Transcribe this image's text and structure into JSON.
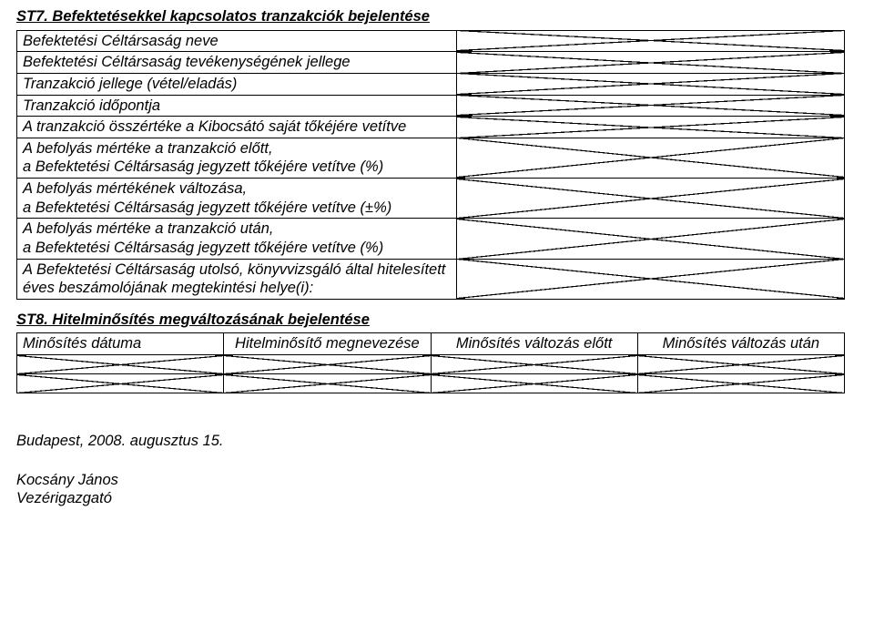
{
  "st7": {
    "title": "ST7. Befektetésekkel kapcsolatos tranzakciók bejelentése",
    "rows": [
      "Befektetési Céltársaság neve",
      "Befektetési Céltársaság tevékenységének jellege",
      "Tranzakció jellege (vétel/eladás)",
      "Tranzakció időpontja",
      "A tranzakció összértéke a Kibocsátó saját tőkéjére vetítve",
      "A befolyás mértéke a tranzakció előtt,\na Befektetési Céltársaság jegyzett tőkéjére vetítve (%)",
      "A befolyás mértékének változása,\na Befektetési Céltársaság jegyzett tőkéjére vetítve (±%)",
      "A befolyás mértéke a tranzakció után,\na Befektetési Céltársaság jegyzett tőkéjére vetítve (%)",
      "A Befektetési Céltársaság utolsó, könyvvizsgáló által hitelesített éves beszámolójának megtekintési helye(i):"
    ]
  },
  "st8": {
    "title": "ST8. Hitelminősítés megváltozásának bejelentése",
    "headers": [
      "Minősítés dátuma",
      "Hitelminősítő megnevezése",
      "Minősítés változás előtt",
      "Minősítés változás után"
    ]
  },
  "footer": {
    "line1": "Budapest, 2008. augusztus 15.",
    "line2": "Kocsány János",
    "line3": "Vezérigazgató"
  },
  "layout": {
    "col_widths_st8": [
      "25%",
      "25%",
      "25%",
      "25%"
    ]
  }
}
